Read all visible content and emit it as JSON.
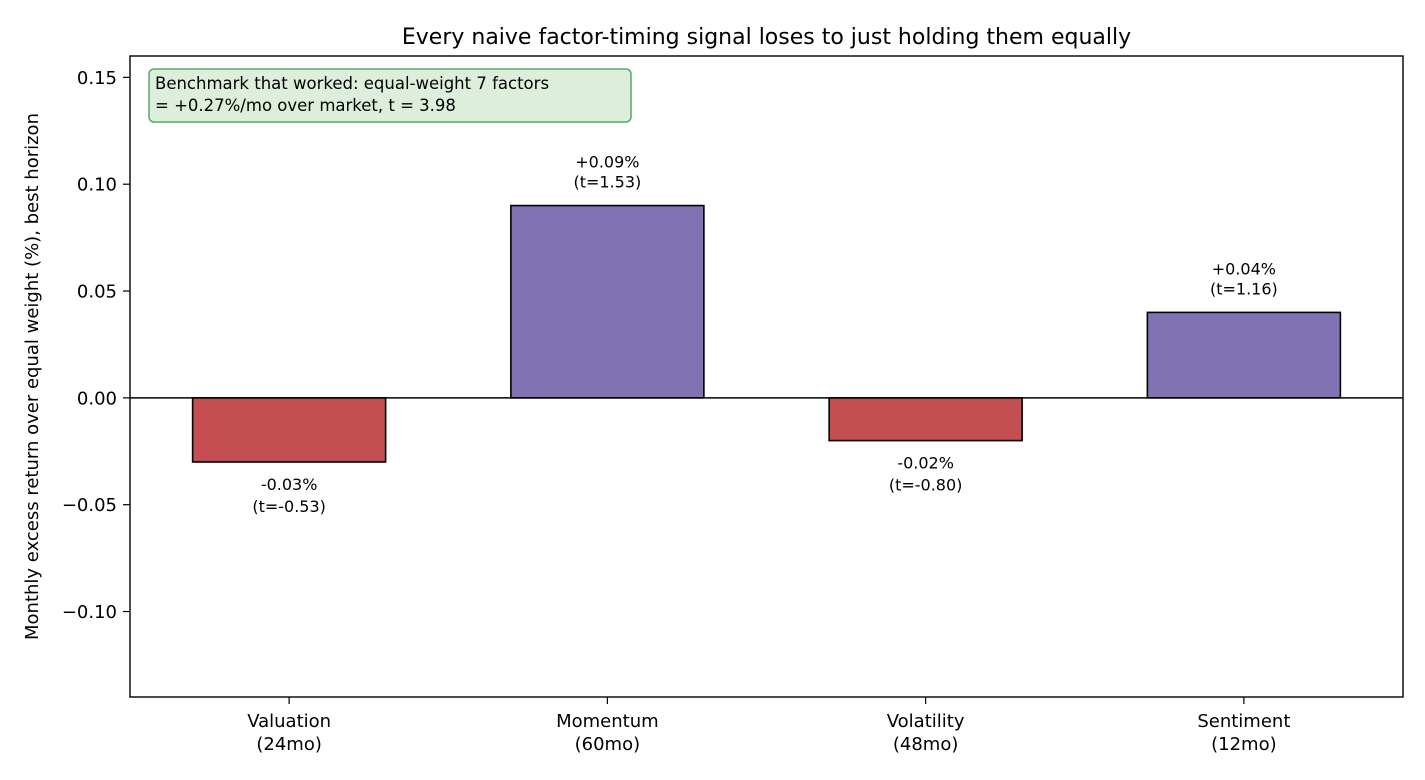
{
  "chart_data": {
    "type": "bar",
    "title": "Every naive factor-timing signal loses to just holding them equally",
    "xlabel": "",
    "ylabel": "Monthly excess return over equal weight (%), best horizon",
    "categories": [
      [
        "Valuation",
        "(24mo)"
      ],
      [
        "Momentum",
        "(60mo)"
      ],
      [
        "Volatility",
        "(48mo)"
      ],
      [
        "Sentiment",
        "(12mo)"
      ]
    ],
    "values": [
      -0.03,
      0.09,
      -0.02,
      0.04
    ],
    "value_labels": [
      "-0.03%",
      "+0.09%",
      "-0.02%",
      "+0.04%"
    ],
    "t_labels": [
      "(t=-0.53)",
      "(t=1.53)",
      "(t=-0.80)",
      "(t=1.16)"
    ],
    "ylim": [
      -0.14,
      0.16
    ],
    "yticks": [
      -0.1,
      -0.05,
      0.0,
      0.05,
      0.1,
      0.15
    ],
    "ytick_labels": [
      "−0.10",
      "−0.05",
      "0.00",
      "0.05",
      "0.10",
      "0.15"
    ],
    "grid": false,
    "colors": {
      "negative": "#c44e52",
      "positive": "#8172b3",
      "edge": "#000000",
      "note_bg": "#ddeedd",
      "note_border": "#55a868"
    },
    "annotation": {
      "lines": [
        "Benchmark that worked: equal-weight 7 factors",
        "= +0.27%/mo over market, t = 3.98"
      ],
      "placement": "top-left"
    }
  }
}
